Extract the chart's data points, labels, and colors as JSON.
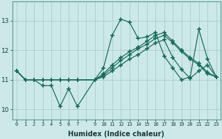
{
  "bg_color": "#cce8e8",
  "grid_color": "#aacccc",
  "line_color": "#1a6b5a",
  "marker": "+",
  "marker_size": 4,
  "marker_linewidth": 1.2,
  "line_width": 0.9,
  "xlabel": "Humidex (Indice chaleur)",
  "xlabel_fontsize": 7,
  "ytick_fontsize": 6.5,
  "xtick_fontsize": 5.0,
  "yticks": [
    10,
    11,
    12,
    13
  ],
  "xtick_labels": [
    "0",
    "1",
    "2",
    "3",
    "4",
    "5",
    "6",
    "7",
    "",
    "9",
    "10",
    "11",
    "12",
    "13",
    "14",
    "15",
    "16",
    "17",
    "18",
    "19",
    "20",
    "21",
    "22",
    "23"
  ],
  "xlim": [
    -0.5,
    23.5
  ],
  "ylim": [
    9.65,
    13.65
  ],
  "series": [
    [
      11.3,
      11.0,
      11.0,
      10.8,
      10.8,
      10.1,
      10.7,
      10.1,
      null,
      11.0,
      11.4,
      12.5,
      13.05,
      12.95,
      12.4,
      12.45,
      12.6,
      11.8,
      11.4,
      11.0,
      11.1,
      12.7,
      11.7,
      11.1
    ],
    [
      11.3,
      11.0,
      11.0,
      11.0,
      11.0,
      11.0,
      11.0,
      11.0,
      null,
      11.0,
      11.2,
      11.5,
      11.75,
      11.95,
      12.1,
      12.3,
      12.5,
      12.6,
      12.3,
      12.0,
      11.75,
      11.55,
      11.25,
      11.1
    ],
    [
      11.3,
      11.0,
      11.0,
      11.0,
      11.0,
      11.0,
      11.0,
      11.0,
      null,
      11.0,
      11.15,
      11.4,
      11.65,
      11.85,
      12.05,
      12.2,
      12.4,
      12.5,
      12.25,
      11.95,
      11.7,
      11.5,
      11.2,
      11.1
    ],
    [
      11.3,
      11.0,
      11.0,
      11.0,
      11.0,
      11.0,
      11.0,
      11.0,
      null,
      11.0,
      11.1,
      11.3,
      11.5,
      11.7,
      11.85,
      12.05,
      12.25,
      12.35,
      11.75,
      11.35,
      11.05,
      11.3,
      11.5,
      11.1
    ]
  ]
}
